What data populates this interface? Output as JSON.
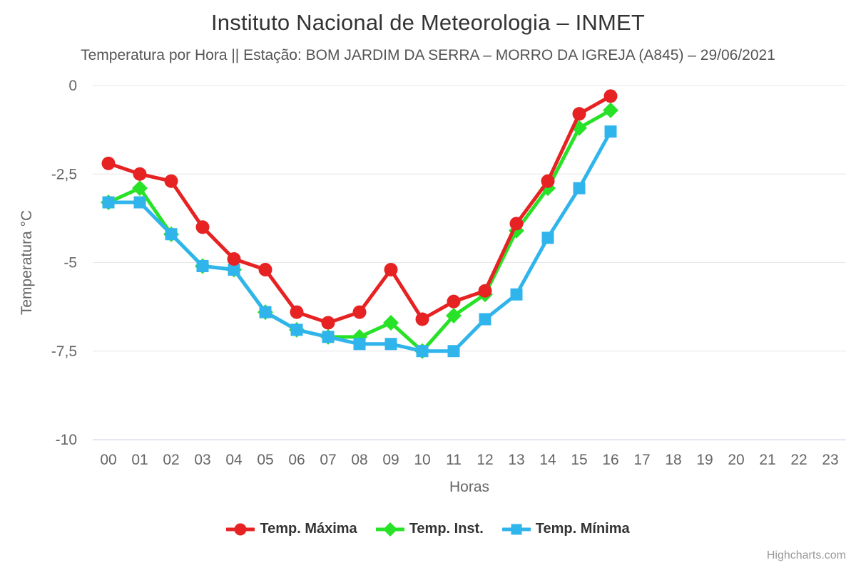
{
  "header": {
    "title": "Instituto Nacional de Meteorologia – INMET",
    "subtitle": "Temperatura por Hora || Estação: BOM JARDIM DA SERRA – MORRO DA IGREJA (A845) – 29/06/2021"
  },
  "chart_data": {
    "type": "line",
    "title": "Instituto Nacional de Meteorologia – INMET",
    "subtitle": "Temperatura por Hora || Estação: BOM JARDIM DA SERRA – MORRO DA IGREJA (A845) – 29/06/2021",
    "xlabel": "Horas",
    "ylabel": "Temperatura °C",
    "categories": [
      "00",
      "01",
      "02",
      "03",
      "04",
      "05",
      "06",
      "07",
      "08",
      "09",
      "10",
      "11",
      "12",
      "13",
      "14",
      "15",
      "16",
      "17",
      "18",
      "19",
      "20",
      "21",
      "22",
      "23"
    ],
    "ylim": [
      -10,
      0
    ],
    "yticks": [
      {
        "value": 0,
        "label": "0"
      },
      {
        "value": -2.5,
        "label": "-2,5"
      },
      {
        "value": -5,
        "label": "-5"
      },
      {
        "value": -7.5,
        "label": "-7,5"
      },
      {
        "value": -10,
        "label": "-10"
      }
    ],
    "grid": true,
    "legend_position": "bottom",
    "series": [
      {
        "name": "Temp. Máxima",
        "color": "#e62222",
        "marker": "circle",
        "z": 3,
        "values": [
          -2.2,
          -2.5,
          -2.7,
          -4.0,
          -4.9,
          -5.2,
          -6.4,
          -6.7,
          -6.4,
          -5.2,
          -6.6,
          -6.1,
          -5.8,
          -3.9,
          -2.7,
          -0.8,
          -0.3,
          null,
          null,
          null,
          null,
          null,
          null,
          null
        ]
      },
      {
        "name": "Temp. Inst.",
        "color": "#28e228",
        "marker": "diamond",
        "z": 1,
        "values": [
          -3.3,
          -2.9,
          -4.2,
          -5.1,
          -5.2,
          -6.4,
          -6.9,
          -7.1,
          -7.1,
          -6.7,
          -7.5,
          -6.5,
          -5.9,
          -4.1,
          -2.9,
          -1.2,
          -0.7,
          null,
          null,
          null,
          null,
          null,
          null,
          null
        ]
      },
      {
        "name": "Temp. Mínima",
        "color": "#30b4ec",
        "marker": "square",
        "z": 2,
        "values": [
          -3.3,
          -3.3,
          -4.2,
          -5.1,
          -5.2,
          -6.4,
          -6.9,
          -7.1,
          -7.3,
          -7.3,
          -7.5,
          -7.5,
          -6.6,
          -5.9,
          -4.3,
          -2.9,
          -1.3,
          null,
          null,
          null,
          null,
          null,
          null,
          null
        ]
      }
    ],
    "colors": {
      "grid_line": "#e6e6e6",
      "axis_line": "#ccd6eb",
      "tick_label": "#666666",
      "axis_title": "#666666",
      "title_text": "#333333",
      "subtitle_text": "#555555",
      "legend_text": "#333333",
      "credits_text": "#999999"
    }
  },
  "legend": {
    "items": [
      {
        "label": "Temp. Máxima"
      },
      {
        "label": "Temp. Inst."
      },
      {
        "label": "Temp. Mínima"
      }
    ]
  },
  "credits": {
    "label": "Highcharts.com"
  }
}
